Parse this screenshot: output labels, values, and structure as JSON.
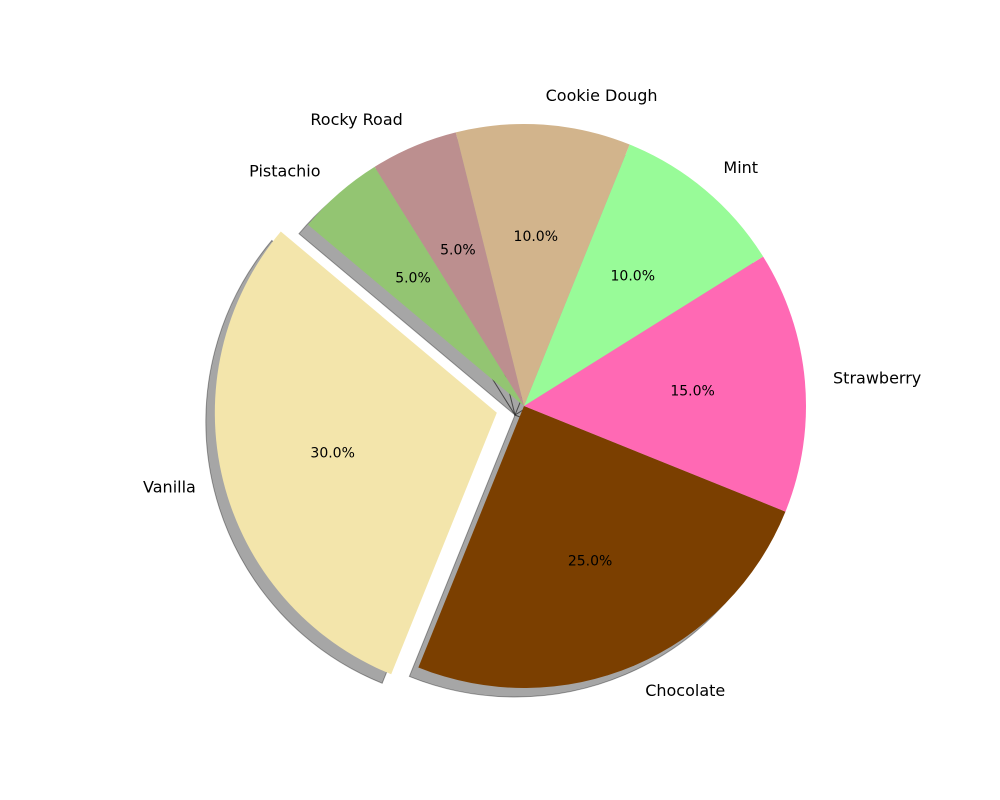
{
  "chart_data": {
    "type": "pie",
    "categories": [
      "Vanilla",
      "Chocolate",
      "Strawberry",
      "Mint",
      "Cookie Dough",
      "Rocky Road",
      "Pistachio"
    ],
    "values": [
      30,
      25,
      15,
      10,
      10,
      5,
      5
    ],
    "percent_labels": [
      "30.0%",
      "25.0%",
      "15.0%",
      "10.0%",
      "10.0%",
      "5.0%",
      "5.0%"
    ],
    "colors": [
      "#F3E5AB",
      "#7B3F00",
      "#FF69B4",
      "#98FB98",
      "#D2B48C",
      "#BC8F8F",
      "#93C572"
    ],
    "exploded": [
      "Vanilla"
    ],
    "shadow": true,
    "title": "",
    "legend": "none"
  }
}
